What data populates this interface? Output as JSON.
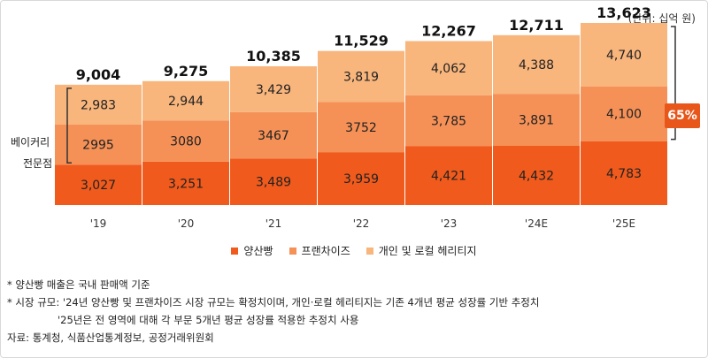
{
  "unit_label": "(단위: 십억 원)",
  "bracket_label_line1": "베이커리",
  "bracket_label_line2": "전문점",
  "share_badge": "65%",
  "colors": {
    "mass": "#f05a1c",
    "franchise": "#f59157",
    "indie": "#f8b57c"
  },
  "chart_data": {
    "type": "bar",
    "stacked": true,
    "categories": [
      "'19",
      "'20",
      "'21",
      "'22",
      "'23",
      "'24E",
      "'25E"
    ],
    "series": [
      {
        "name": "양산빵",
        "values": [
          3027,
          3251,
          3489,
          3959,
          4421,
          4432,
          4783
        ],
        "labels": [
          "3,027",
          "3,251",
          "3,489",
          "3,959",
          "4,421",
          "4,432",
          "4,783"
        ]
      },
      {
        "name": "프랜차이즈",
        "values": [
          2995,
          3080,
          3467,
          3752,
          3785,
          3891,
          4100
        ],
        "labels": [
          "2995",
          "3080",
          "3467",
          "3752",
          "3,785",
          "3,891",
          "4,100"
        ]
      },
      {
        "name": "개인 및 로컬 헤리티지",
        "values": [
          2983,
          2944,
          3429,
          3819,
          4062,
          4388,
          4740
        ],
        "labels": [
          "2,983",
          "2,944",
          "3,429",
          "3,819",
          "4,062",
          "4,388",
          "4,740"
        ]
      }
    ],
    "totals": [
      "9,004",
      "9,275",
      "10,385",
      "11,529",
      "12,267",
      "12,711",
      "13,623"
    ],
    "total_values": [
      9004,
      9275,
      10385,
      11529,
      12267,
      12711,
      13623
    ],
    "ylim": [
      0,
      14000
    ],
    "legend": "bottom-center",
    "grid": false
  },
  "notes": [
    "* 양산빵 매출은 국내 판매액 기준",
    "* 시장 규모: '24년 양산빵 및 프랜차이즈 시장 규모는 확정치이며, 개인·로컬 헤리티지는 기존 4개년 평균 성장률 기반 추정치",
    "'25년은 전 영역에 대해 각 부문 5개년 평균 성장률 적용한 추정치 사용",
    "자료: 통계청, 식품산업통계정보, 공정거래위원회"
  ]
}
